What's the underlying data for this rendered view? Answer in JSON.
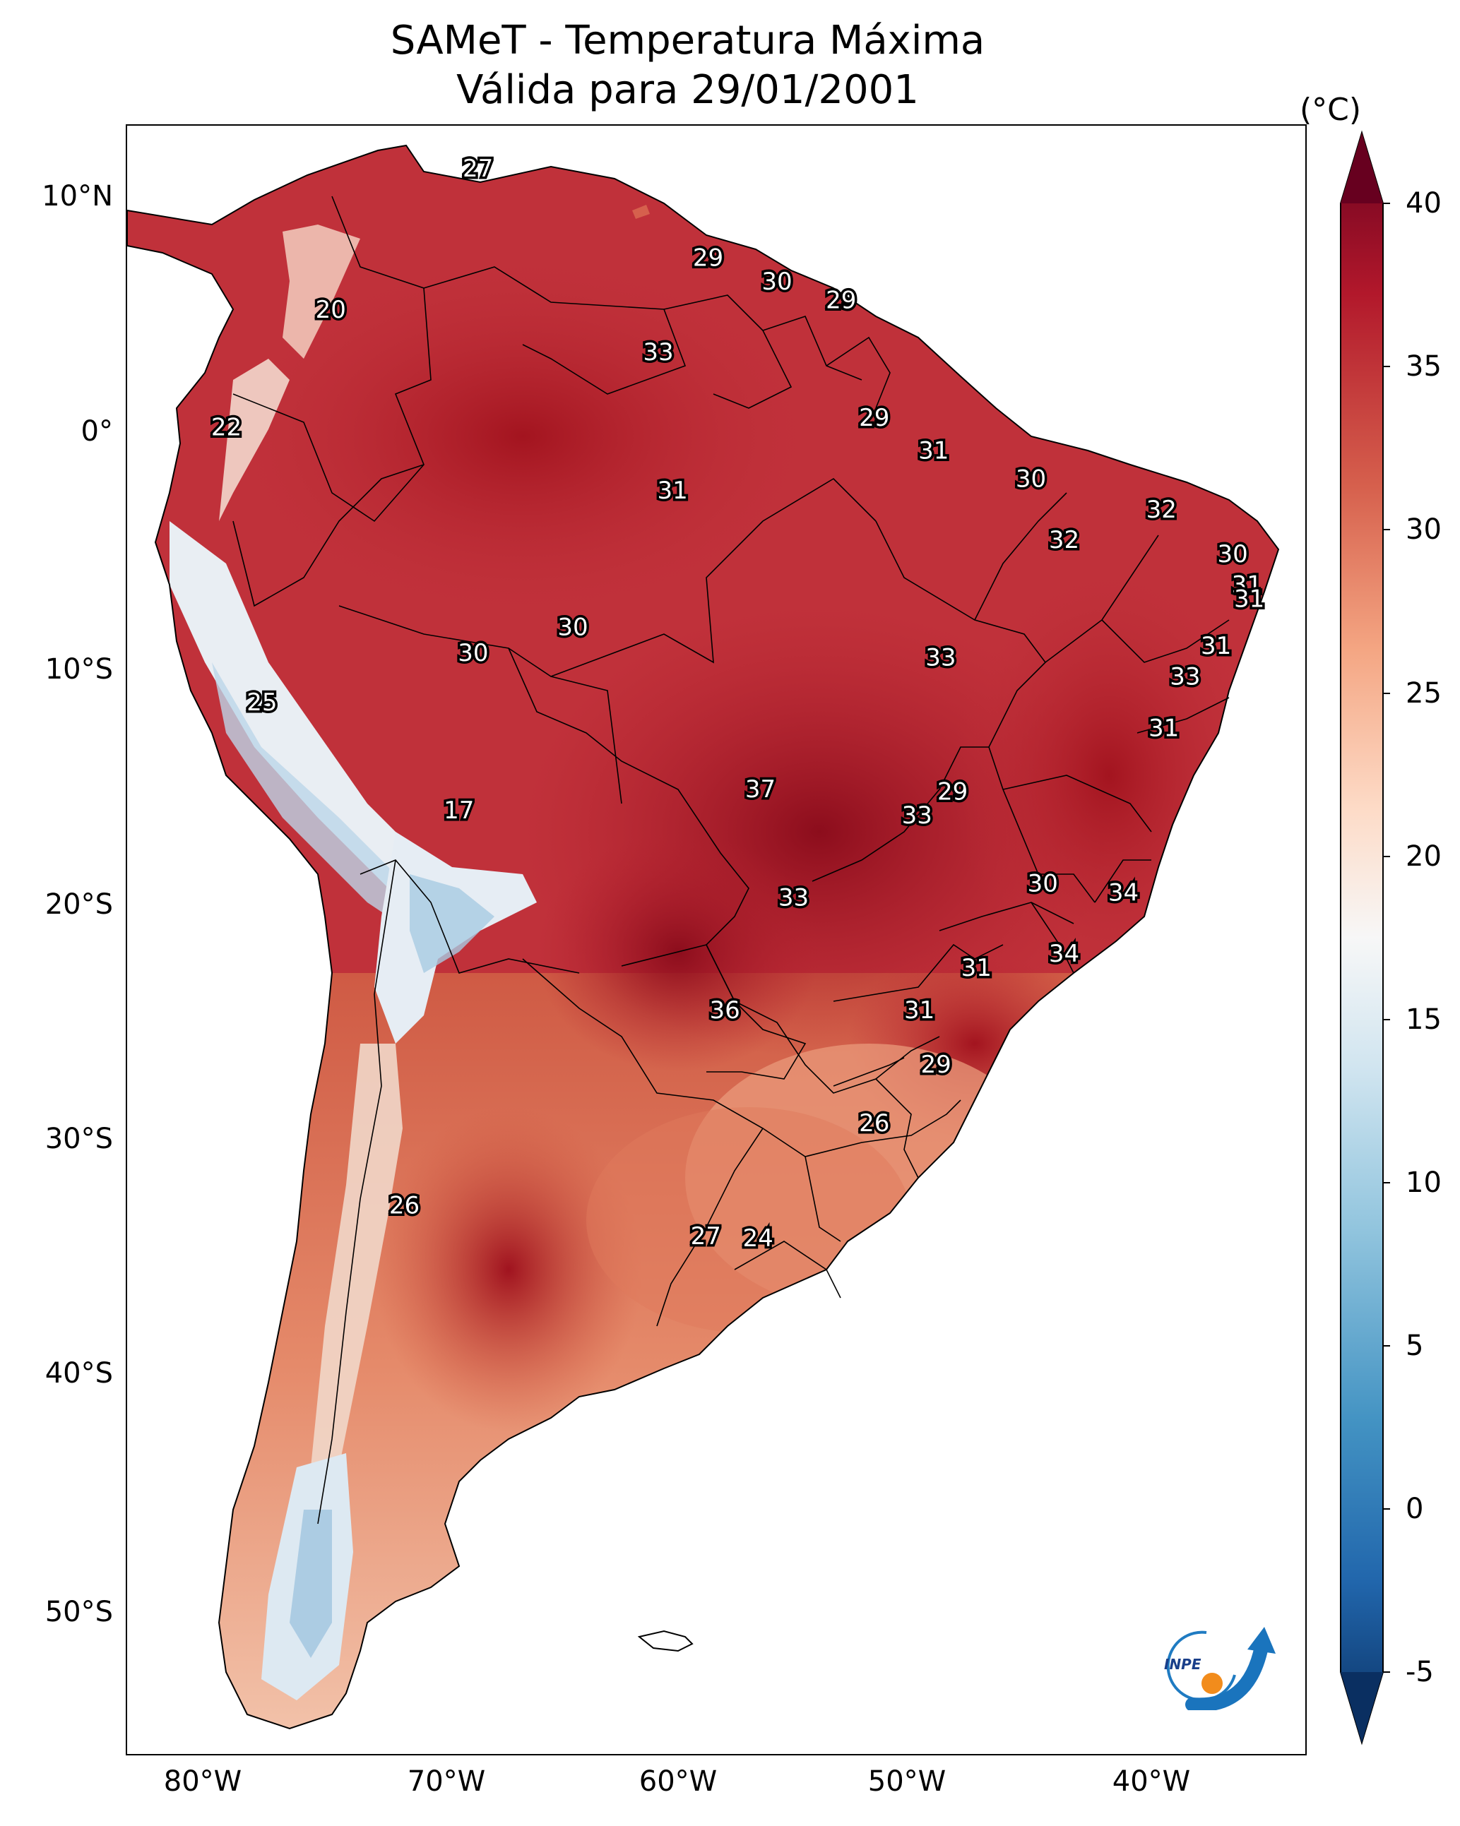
{
  "title": {
    "line1": "SAMeT - Temperatura Máxima",
    "line2": "Válida para 29/01/2001"
  },
  "map": {
    "region": "South America",
    "lat_ticks": [
      "10°N",
      "0°",
      "10°S",
      "20°S",
      "30°S",
      "40°S",
      "50°S"
    ],
    "lon_ticks": [
      "80°W",
      "70°W",
      "60°W",
      "50°W",
      "40°W"
    ],
    "contour_labels": [
      {
        "text": "27",
        "lon": -67.6,
        "lat": 10.6
      },
      {
        "text": "20",
        "lon": -73.8,
        "lat": 4.6
      },
      {
        "text": "22",
        "lon": -78.2,
        "lat": -0.4
      },
      {
        "text": "29",
        "lon": -57.9,
        "lat": 6.8
      },
      {
        "text": "30",
        "lon": -55.0,
        "lat": 5.8
      },
      {
        "text": "29",
        "lon": -52.3,
        "lat": 5.0
      },
      {
        "text": "33",
        "lon": -60.0,
        "lat": 2.8
      },
      {
        "text": "29",
        "lon": -50.9,
        "lat": 0.0
      },
      {
        "text": "31",
        "lon": -59.4,
        "lat": -3.1
      },
      {
        "text": "31",
        "lon": -48.4,
        "lat": -1.4
      },
      {
        "text": "30",
        "lon": -44.3,
        "lat": -2.6
      },
      {
        "text": "32",
        "lon": -38.8,
        "lat": -3.9
      },
      {
        "text": "32",
        "lon": -42.9,
        "lat": -5.2
      },
      {
        "text": "30",
        "lon": -35.8,
        "lat": -5.8
      },
      {
        "text": "31",
        "lon": -35.2,
        "lat": -7.1
      },
      {
        "text": "31",
        "lon": -35.1,
        "lat": -7.7
      },
      {
        "text": "30",
        "lon": -63.6,
        "lat": -8.9
      },
      {
        "text": "30",
        "lon": -67.8,
        "lat": -10.0
      },
      {
        "text": "33",
        "lon": -48.1,
        "lat": -10.2
      },
      {
        "text": "31",
        "lon": -36.5,
        "lat": -9.7
      },
      {
        "text": "33",
        "lon": -37.8,
        "lat": -11.0
      },
      {
        "text": "25",
        "lon": -76.7,
        "lat": -12.1
      },
      {
        "text": "31",
        "lon": -38.7,
        "lat": -13.2
      },
      {
        "text": "17",
        "lon": -68.4,
        "lat": -16.7
      },
      {
        "text": "37",
        "lon": -55.7,
        "lat": -15.8
      },
      {
        "text": "29",
        "lon": -47.6,
        "lat": -15.9
      },
      {
        "text": "33",
        "lon": -49.1,
        "lat": -16.9
      },
      {
        "text": "30",
        "lon": -43.8,
        "lat": -19.8
      },
      {
        "text": "34",
        "lon": -40.4,
        "lat": -20.2
      },
      {
        "text": "33",
        "lon": -54.3,
        "lat": -20.4
      },
      {
        "text": "34",
        "lon": -42.9,
        "lat": -22.8
      },
      {
        "text": "31",
        "lon": -46.6,
        "lat": -23.4
      },
      {
        "text": "36",
        "lon": -57.2,
        "lat": -25.2
      },
      {
        "text": "31",
        "lon": -49.0,
        "lat": -25.2
      },
      {
        "text": "29",
        "lon": -48.3,
        "lat": -27.5
      },
      {
        "text": "26",
        "lon": -50.9,
        "lat": -30.0
      },
      {
        "text": "26",
        "lon": -70.7,
        "lat": -33.5
      },
      {
        "text": "27",
        "lon": -58.0,
        "lat": -34.8
      },
      {
        "text": "24",
        "lon": -55.8,
        "lat": -34.9
      }
    ]
  },
  "colorbar": {
    "unit": "(°C)",
    "ticks": [
      "40",
      "35",
      "30",
      "25",
      "20",
      "15",
      "10",
      "5",
      "0",
      "-5"
    ],
    "min": -5,
    "max": 40,
    "colors": [
      "#0a2f61",
      "#2166ac",
      "#4393c3",
      "#92c5de",
      "#d1e5f0",
      "#f7f7f7",
      "#fddbc7",
      "#f4a582",
      "#d6604d",
      "#b2182b",
      "#67001f"
    ]
  },
  "logo": {
    "text": "INPE"
  }
}
